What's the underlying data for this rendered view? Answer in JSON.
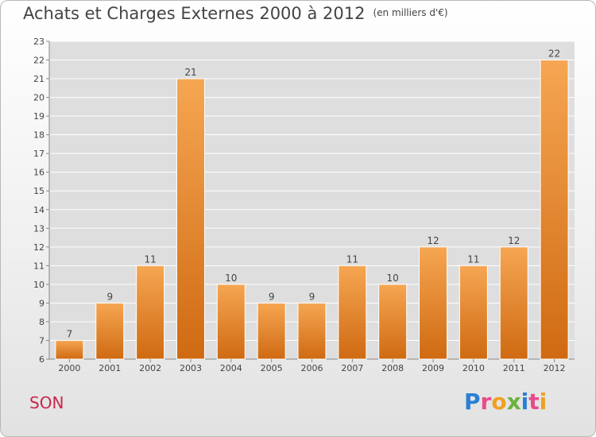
{
  "header": {
    "title": "Achats et Charges Externes 2000 à 2012",
    "unit": "(en milliers d'€)"
  },
  "footer": {
    "commune": "SON",
    "brand_letters": [
      "P",
      "r",
      "o",
      "x",
      "i",
      "t",
      "i"
    ],
    "brand_colors": [
      "#2a7fd4",
      "#e94b8a",
      "#f0a020",
      "#6ab33e",
      "#2a7fd4",
      "#e94b8a",
      "#f0a020"
    ]
  },
  "chart_data": {
    "type": "bar",
    "categories": [
      "2000",
      "2001",
      "2002",
      "2003",
      "2004",
      "2005",
      "2006",
      "2007",
      "2008",
      "2009",
      "2010",
      "2011",
      "2012"
    ],
    "values": [
      7,
      9,
      11,
      21,
      10,
      9,
      9,
      11,
      10,
      12,
      11,
      12,
      22
    ],
    "title": "Achats et Charges Externes 2000 à 2012",
    "xlabel": "",
    "ylabel": "",
    "ylim": [
      6,
      23
    ],
    "yticks": [
      6,
      7,
      8,
      9,
      10,
      11,
      12,
      13,
      14,
      15,
      16,
      17,
      18,
      19,
      20,
      21,
      22,
      23
    ],
    "grid": true,
    "bar_color_top": "#f6a652",
    "bar_color_bottom": "#cf6a12",
    "plot_bg": "#dedede"
  }
}
